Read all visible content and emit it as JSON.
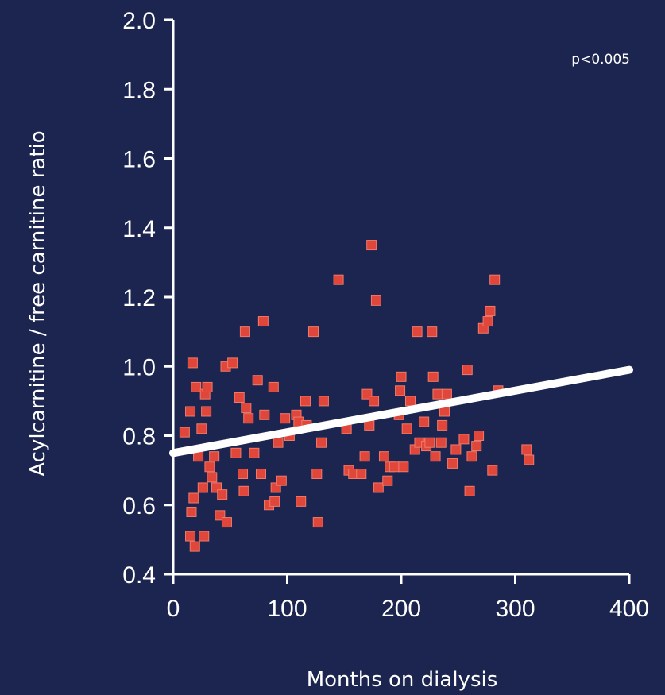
{
  "chart_data": {
    "type": "scatter",
    "title": "",
    "xlabel": "Months on dialysis",
    "ylabel": "Acylcarnitine / free carnitine ratio",
    "xlim": [
      0,
      400
    ],
    "ylim": [
      0.4,
      2.0
    ],
    "x_ticks": [
      "0",
      "100",
      "200",
      "300",
      "400"
    ],
    "y_ticks": [
      "0.4",
      "0.6",
      "0.8",
      "1.0",
      "1.2",
      "1.4",
      "1.6",
      "1.8",
      "2.0"
    ],
    "annotation": "p<0.005",
    "grid": false,
    "colors": {
      "background": "#1c2550",
      "points": "#e0463a",
      "trend": "#ffffff",
      "axes": "#ffffff"
    },
    "series": [
      {
        "type": "scatter",
        "points": [
          [
            10,
            0.81
          ],
          [
            15,
            0.87
          ],
          [
            17,
            1.01
          ],
          [
            20,
            0.94
          ],
          [
            18,
            0.62
          ],
          [
            16,
            0.58
          ],
          [
            15,
            0.51
          ],
          [
            19,
            0.48
          ],
          [
            22,
            0.74
          ],
          [
            25,
            0.82
          ],
          [
            26,
            0.65
          ],
          [
            28,
            0.92
          ],
          [
            29,
            0.87
          ],
          [
            27,
            0.51
          ],
          [
            30,
            0.94
          ],
          [
            32,
            0.71
          ],
          [
            34,
            0.68
          ],
          [
            36,
            0.74
          ],
          [
            38,
            0.65
          ],
          [
            41,
            0.57
          ],
          [
            43,
            0.63
          ],
          [
            46,
            1.0
          ],
          [
            47,
            0.55
          ],
          [
            52,
            1.01
          ],
          [
            55,
            0.75
          ],
          [
            58,
            0.91
          ],
          [
            62,
            0.64
          ],
          [
            61,
            0.69
          ],
          [
            63,
            1.1
          ],
          [
            64,
            0.88
          ],
          [
            66,
            0.85
          ],
          [
            71,
            0.75
          ],
          [
            74,
            0.96
          ],
          [
            77,
            0.69
          ],
          [
            79,
            1.13
          ],
          [
            80,
            0.86
          ],
          [
            84,
            0.6
          ],
          [
            88,
            0.94
          ],
          [
            89,
            0.61
          ],
          [
            90,
            0.65
          ],
          [
            92,
            0.78
          ],
          [
            95,
            0.67
          ],
          [
            98,
            0.85
          ],
          [
            102,
            0.8
          ],
          [
            108,
            0.86
          ],
          [
            110,
            0.84
          ],
          [
            112,
            0.61
          ],
          [
            116,
            0.9
          ],
          [
            117,
            0.83
          ],
          [
            123,
            1.1
          ],
          [
            126,
            0.69
          ],
          [
            127,
            0.55
          ],
          [
            130,
            0.78
          ],
          [
            132,
            0.9
          ],
          [
            145,
            1.25
          ],
          [
            152,
            0.82
          ],
          [
            154,
            0.7
          ],
          [
            158,
            0.69
          ],
          [
            165,
            0.69
          ],
          [
            168,
            0.74
          ],
          [
            170,
            0.92
          ],
          [
            172,
            0.83
          ],
          [
            174,
            1.35
          ],
          [
            176,
            0.9
          ],
          [
            178,
            1.19
          ],
          [
            180,
            0.65
          ],
          [
            185,
            0.74
          ],
          [
            188,
            0.67
          ],
          [
            190,
            0.71
          ],
          [
            194,
            0.71
          ],
          [
            198,
            0.86
          ],
          [
            199,
            0.93
          ],
          [
            200,
            0.97
          ],
          [
            202,
            0.71
          ],
          [
            205,
            0.82
          ],
          [
            208,
            0.9
          ],
          [
            212,
            0.76
          ],
          [
            214,
            1.1
          ],
          [
            216,
            0.78
          ],
          [
            220,
            0.84
          ],
          [
            222,
            0.77
          ],
          [
            225,
            0.78
          ],
          [
            227,
            1.1
          ],
          [
            228,
            0.97
          ],
          [
            230,
            0.74
          ],
          [
            232,
            0.92
          ],
          [
            235,
            0.78
          ],
          [
            236,
            0.83
          ],
          [
            238,
            0.87
          ],
          [
            240,
            0.92
          ],
          [
            245,
            0.72
          ],
          [
            248,
            0.76
          ],
          [
            255,
            0.79
          ],
          [
            258,
            0.99
          ],
          [
            260,
            0.64
          ],
          [
            262,
            0.74
          ],
          [
            266,
            0.77
          ],
          [
            268,
            0.8
          ],
          [
            272,
            1.11
          ],
          [
            276,
            1.13
          ],
          [
            278,
            1.16
          ],
          [
            280,
            0.7
          ],
          [
            282,
            1.25
          ],
          [
            285,
            0.93
          ],
          [
            310,
            0.76
          ],
          [
            312,
            0.73
          ]
        ]
      },
      {
        "type": "line",
        "name": "",
        "points": [
          [
            0,
            0.75
          ],
          [
            400,
            0.99
          ]
        ]
      }
    ]
  }
}
